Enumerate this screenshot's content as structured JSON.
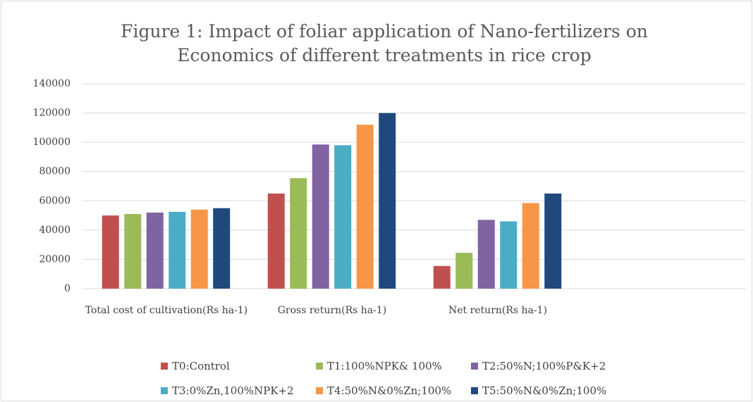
{
  "chart_data": {
    "type": "bar",
    "title": "Figure 1: Impact  of foliar application of Nano-fertilizers on Economics of different treatments in rice crop",
    "categories": [
      "Total cost of cultivation(Rs ha-1)",
      "Gross return(Rs ha-1)",
      "Net return(Rs ha-1)",
      null
    ],
    "series": [
      {
        "name": "T0:Control",
        "color": "#c0504d",
        "values": [
          50000,
          65000,
          15500,
          null
        ]
      },
      {
        "name": "T1:100%NPK& 100%",
        "color": "#9bbb59",
        "values": [
          51000,
          75500,
          24500,
          null
        ]
      },
      {
        "name": "T2:50%N;100%P&K+2",
        "color": "#8064a2",
        "values": [
          52000,
          98500,
          47000,
          null
        ]
      },
      {
        "name": "T3:0%Zn,100%NPK+2",
        "color": "#4bacc6",
        "values": [
          52500,
          98000,
          46000,
          null
        ]
      },
      {
        "name": "T4:50%N&0%Zn;100%",
        "color": "#f79646",
        "values": [
          54000,
          112000,
          58500,
          null
        ]
      },
      {
        "name": "T5:50%N&0%Zn;100%",
        "color": "#1f497d",
        "values": [
          55000,
          120000,
          65000,
          null
        ]
      }
    ],
    "ylim": [
      0,
      140000
    ],
    "yticks": [
      0,
      20000,
      40000,
      60000,
      80000,
      100000,
      120000,
      140000
    ],
    "grid": true,
    "legend": "bottom"
  }
}
